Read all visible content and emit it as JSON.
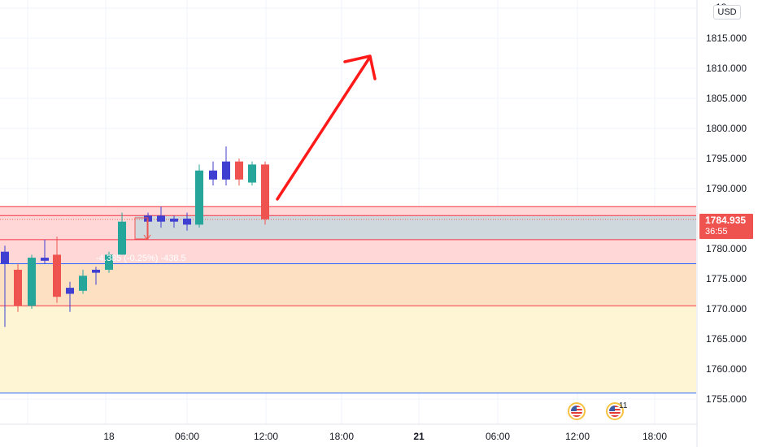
{
  "currency": "USD",
  "top_price_label": "18",
  "price_axis": {
    "labels": [
      "1815.000",
      "1810.000",
      "1805.000",
      "1800.000",
      "1795.000",
      "1790.000",
      "1780.000",
      "1775.000",
      "1770.000",
      "1765.000",
      "1760.000",
      "1755.000"
    ],
    "values": [
      1815,
      1810,
      1805,
      1800,
      1795,
      1790,
      1780,
      1775,
      1770,
      1765,
      1760,
      1755
    ]
  },
  "time_axis": {
    "labels": [
      "18",
      "06:00",
      "12:00",
      "18:00",
      "21",
      "06:00",
      "12:00",
      "18:00"
    ],
    "bold": [
      false,
      false,
      false,
      false,
      true,
      false,
      false,
      false
    ]
  },
  "current_price": "1784.935",
  "countdown": "36:55",
  "measure_label": "-4.385 (-0.25%) -438.5",
  "event_badges": [
    {
      "name": "us-economic-event-icon"
    },
    {
      "name": "us-economic-event-icon",
      "count": "11"
    }
  ],
  "event_count": "11",
  "colors": {
    "up": "#26a69a",
    "down": "#ef5350",
    "marker": "#3f3fd1",
    "arrow": "#ff1a1a",
    "zone_red": "#ffd7d7",
    "zone_orange": "#fde0c2",
    "zone_yellow": "#fdf5d4",
    "zone_blue": "#cfd8dc",
    "hline_red": "#f23645",
    "hline_blue": "#2962ff"
  },
  "chart_data": {
    "type": "candlestick",
    "candles": [
      {
        "o": 1779.5,
        "h": 1780.5,
        "l": 1767.0,
        "c": 1777.5,
        "dir": "marker"
      },
      {
        "o": 1776.5,
        "h": 1777.5,
        "l": 1769.5,
        "c": 1770.5,
        "dir": "down"
      },
      {
        "o": 1770.5,
        "h": 1779.0,
        "l": 1770.0,
        "c": 1778.5,
        "dir": "up"
      },
      {
        "o": 1778.5,
        "h": 1781.5,
        "l": 1777.5,
        "c": 1778.0,
        "dir": "marker"
      },
      {
        "o": 1779.0,
        "h": 1782.0,
        "l": 1771.0,
        "c": 1772.0,
        "dir": "down"
      },
      {
        "o": 1773.5,
        "h": 1774.5,
        "l": 1769.5,
        "c": 1772.5,
        "dir": "marker"
      },
      {
        "o": 1773.0,
        "h": 1776.5,
        "l": 1772.5,
        "c": 1775.5,
        "dir": "up"
      },
      {
        "o": 1776.0,
        "h": 1777.0,
        "l": 1774.0,
        "c": 1776.5,
        "dir": "marker"
      },
      {
        "o": 1776.5,
        "h": 1779.5,
        "l": 1776.0,
        "c": 1779.0,
        "dir": "up"
      },
      {
        "o": 1779.0,
        "h": 1786.0,
        "l": 1779.0,
        "c": 1784.5,
        "dir": "up"
      },
      {
        "o": 1784.5,
        "h": 1786.0,
        "l": 1782.0,
        "c": 1785.5,
        "dir": "marker"
      },
      {
        "o": 1784.5,
        "h": 1787.0,
        "l": 1783.5,
        "c": 1785.5,
        "dir": "marker"
      },
      {
        "o": 1785.0,
        "h": 1785.5,
        "l": 1783.5,
        "c": 1784.5,
        "dir": "marker"
      },
      {
        "o": 1784.0,
        "h": 1786.0,
        "l": 1783.0,
        "c": 1785.0,
        "dir": "marker"
      },
      {
        "o": 1784.0,
        "h": 1794.0,
        "l": 1783.5,
        "c": 1793.0,
        "dir": "up"
      },
      {
        "o": 1793.0,
        "h": 1794.5,
        "l": 1790.5,
        "c": 1791.5,
        "dir": "marker"
      },
      {
        "o": 1791.5,
        "h": 1797.0,
        "l": 1790.5,
        "c": 1794.5,
        "dir": "marker"
      },
      {
        "o": 1794.5,
        "h": 1795.0,
        "l": 1790.5,
        "c": 1791.5,
        "dir": "down"
      },
      {
        "o": 1791.0,
        "h": 1794.5,
        "l": 1790.5,
        "c": 1794.0,
        "dir": "up"
      },
      {
        "o": 1794.0,
        "h": 1794.5,
        "l": 1784.0,
        "c": 1784.9,
        "dir": "down"
      }
    ],
    "price_range": [
      1750,
      1820
    ],
    "zones": [
      {
        "name": "red-zone",
        "from": 1777.5,
        "to": 1787.0
      },
      {
        "name": "orange-zone",
        "from": 1770.5,
        "to": 1777.5
      },
      {
        "name": "yellow-zone",
        "from": 1756.0,
        "to": 1770.5
      },
      {
        "name": "blue-zone",
        "from": 1781.5,
        "to": 1785.5
      }
    ],
    "lines": [
      {
        "name": "red-line",
        "price": 1787.0,
        "color": "hline_red"
      },
      {
        "name": "red-line",
        "price": 1785.5,
        "color": "hline_red"
      },
      {
        "name": "red-line",
        "price": 1781.5,
        "color": "hline_red"
      },
      {
        "name": "red-line",
        "price": 1770.5,
        "color": "hline_red"
      },
      {
        "name": "blue-line",
        "price": 1777.5,
        "color": "hline_blue"
      },
      {
        "name": "blue-line",
        "price": 1756.0,
        "color": "hline_blue"
      }
    ],
    "grid": true
  }
}
